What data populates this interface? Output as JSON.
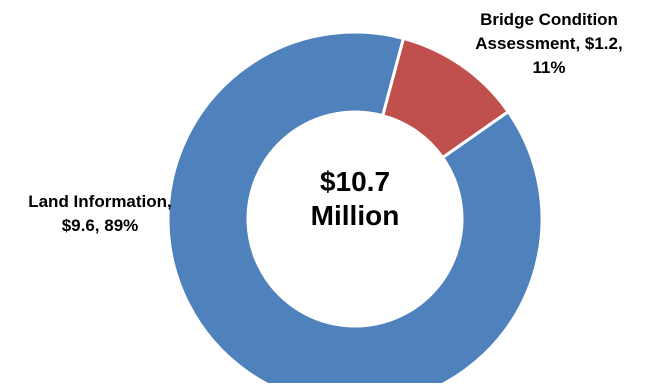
{
  "chart_data": {
    "type": "pie",
    "style": "donut",
    "title": "",
    "center_label": [
      "$10.7",
      "Million"
    ],
    "slices": [
      {
        "category": "Bridge Condition Assessment",
        "value": 1.2,
        "percent": 11,
        "label_lines": [
          "Bridge Condition",
          "Assessment, $1.2,",
          "11%"
        ],
        "color": "#C0504D"
      },
      {
        "category": "Land Information",
        "value": 9.6,
        "percent": 89,
        "label_lines": [
          "Land Information,",
          "$9.6, 89%"
        ],
        "color": "#4F81BD"
      }
    ],
    "legend": "none",
    "slice_border_color": "#FFFFFF"
  }
}
